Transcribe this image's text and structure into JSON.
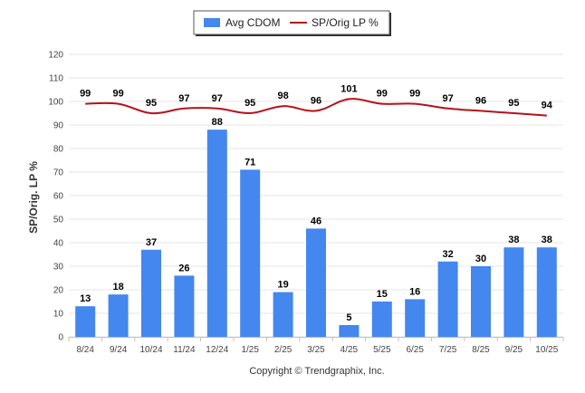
{
  "colors": {
    "bar": "#4487ee",
    "line": "#b5121b",
    "grid": "#e6e6e6",
    "axis": "#c0c0c0"
  },
  "chart_data": {
    "type": "bar+line",
    "title": "",
    "categories": [
      "8/24",
      "9/24",
      "10/24",
      "11/24",
      "12/24",
      "1/25",
      "2/25",
      "3/25",
      "4/25",
      "5/25",
      "6/25",
      "7/25",
      "8/25",
      "9/25",
      "10/25"
    ],
    "series": [
      {
        "name": "Avg CDOM",
        "type": "bar",
        "values": [
          13,
          18,
          37,
          26,
          88,
          71,
          19,
          46,
          5,
          15,
          16,
          32,
          30,
          38,
          38
        ]
      },
      {
        "name": "SP/Orig LP %",
        "type": "line",
        "values": [
          99,
          99,
          95,
          97,
          97,
          95,
          98,
          96,
          101,
          99,
          99,
          97,
          96,
          95,
          94
        ]
      }
    ],
    "ylabel": "SP/Orig. LP %",
    "xlabel": "",
    "ylim": [
      0,
      120
    ],
    "yticks": [
      0,
      10,
      20,
      30,
      40,
      50,
      60,
      70,
      80,
      90,
      100,
      110,
      120
    ],
    "grid": true,
    "legend_position": "top-center"
  },
  "footer": {
    "copyright": "Copyright © Trendgraphix, Inc."
  }
}
